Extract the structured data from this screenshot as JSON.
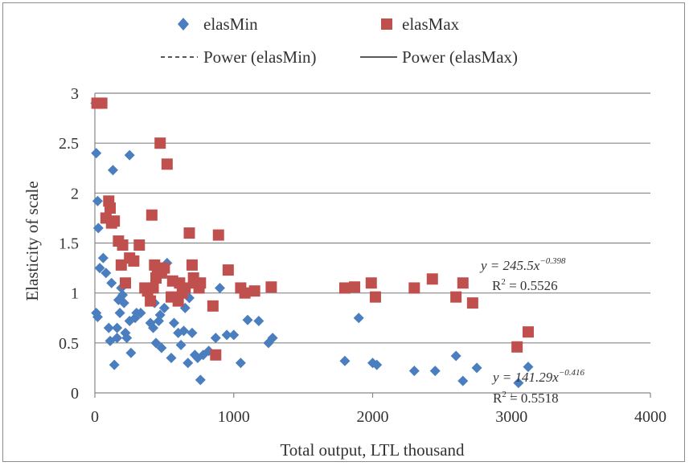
{
  "chart_data": {
    "type": "scatter",
    "xlabel": "Total output, LTL thousand",
    "ylabel": "Elasticity of scale",
    "xlim": [
      0,
      4000
    ],
    "ylim": [
      0,
      3
    ],
    "x_ticks": [
      "0",
      "1000",
      "2000",
      "3000",
      "4000"
    ],
    "y_ticks": [
      "0",
      "0.5",
      "1",
      "1.5",
      "2",
      "2.5",
      "3"
    ],
    "grid": "horizontal",
    "legend_position": "top",
    "legend": {
      "elasMin": "elasMin",
      "elasMax": "elasMax",
      "power_min": "Power (elasMin)",
      "power_max": "Power (elasMax)"
    },
    "series": [
      {
        "name": "elasMin",
        "marker": "diamond",
        "color": "#4a7ebf",
        "points": [
          [
            5,
            2.9
          ],
          [
            10,
            2.4
          ],
          [
            20,
            1.92
          ],
          [
            25,
            1.65
          ],
          [
            35,
            1.25
          ],
          [
            10,
            0.8
          ],
          [
            20,
            0.76
          ],
          [
            60,
            1.35
          ],
          [
            80,
            1.2
          ],
          [
            100,
            0.65
          ],
          [
            110,
            0.52
          ],
          [
            120,
            1.1
          ],
          [
            130,
            2.23
          ],
          [
            140,
            0.28
          ],
          [
            160,
            0.65
          ],
          [
            170,
            0.93
          ],
          [
            180,
            0.8
          ],
          [
            190,
            1.05
          ],
          [
            200,
            0.98
          ],
          [
            210,
            0.9
          ],
          [
            220,
            0.6
          ],
          [
            230,
            0.55
          ],
          [
            250,
            0.72
          ],
          [
            260,
            0.4
          ],
          [
            290,
            0.75
          ],
          [
            300,
            0.8
          ],
          [
            330,
            0.8
          ],
          [
            360,
            1.05
          ],
          [
            380,
            1.0
          ],
          [
            400,
            0.7
          ],
          [
            420,
            0.65
          ],
          [
            430,
            0.9
          ],
          [
            440,
            0.5
          ],
          [
            450,
            1.2
          ],
          [
            460,
            0.72
          ],
          [
            470,
            0.78
          ],
          [
            480,
            0.45
          ],
          [
            500,
            0.85
          ],
          [
            520,
            1.3
          ],
          [
            550,
            0.35
          ],
          [
            570,
            0.7
          ],
          [
            600,
            0.6
          ],
          [
            620,
            0.48
          ],
          [
            640,
            0.62
          ],
          [
            650,
            0.85
          ],
          [
            670,
            0.3
          ],
          [
            680,
            0.95
          ],
          [
            700,
            0.6
          ],
          [
            720,
            0.38
          ],
          [
            740,
            0.35
          ],
          [
            760,
            0.13
          ],
          [
            780,
            0.38
          ],
          [
            820,
            0.42
          ],
          [
            870,
            0.55
          ],
          [
            900,
            1.05
          ],
          [
            950,
            0.58
          ],
          [
            1000,
            0.58
          ],
          [
            1050,
            0.3
          ],
          [
            1100,
            0.73
          ],
          [
            1180,
            0.72
          ],
          [
            1250,
            0.5
          ],
          [
            1280,
            0.55
          ],
          [
            1800,
            0.32
          ],
          [
            1900,
            0.75
          ],
          [
            2000,
            0.3
          ],
          [
            2030,
            0.28
          ],
          [
            2300,
            0.22
          ],
          [
            2450,
            0.22
          ],
          [
            2600,
            0.37
          ],
          [
            2650,
            0.12
          ],
          [
            2750,
            0.25
          ],
          [
            3050,
            0.1
          ],
          [
            3120,
            0.26
          ],
          [
            250,
            2.38
          ],
          [
            160,
            0.55
          ]
        ]
      },
      {
        "name": "elasMax",
        "marker": "square",
        "color": "#c0504d",
        "points": [
          [
            15,
            2.9
          ],
          [
            50,
            2.9
          ],
          [
            80,
            1.75
          ],
          [
            100,
            1.92
          ],
          [
            110,
            1.85
          ],
          [
            120,
            1.7
          ],
          [
            140,
            1.72
          ],
          [
            170,
            1.52
          ],
          [
            190,
            1.28
          ],
          [
            200,
            1.48
          ],
          [
            220,
            1.1
          ],
          [
            250,
            1.35
          ],
          [
            280,
            1.32
          ],
          [
            320,
            1.48
          ],
          [
            360,
            1.05
          ],
          [
            380,
            1.02
          ],
          [
            400,
            0.92
          ],
          [
            410,
            1.78
          ],
          [
            420,
            1.05
          ],
          [
            430,
            1.28
          ],
          [
            440,
            1.15
          ],
          [
            450,
            1.22
          ],
          [
            470,
            2.5
          ],
          [
            480,
            1.2
          ],
          [
            500,
            1.25
          ],
          [
            520,
            2.29
          ],
          [
            550,
            0.96
          ],
          [
            560,
            1.12
          ],
          [
            600,
            0.92
          ],
          [
            610,
            1.1
          ],
          [
            630,
            1.0
          ],
          [
            650,
            1.05
          ],
          [
            680,
            1.6
          ],
          [
            700,
            1.28
          ],
          [
            710,
            1.15
          ],
          [
            720,
            1.1
          ],
          [
            750,
            1.05
          ],
          [
            760,
            1.1
          ],
          [
            850,
            0.87
          ],
          [
            870,
            0.38
          ],
          [
            890,
            1.58
          ],
          [
            960,
            1.23
          ],
          [
            1050,
            1.05
          ],
          [
            1080,
            1.0
          ],
          [
            1150,
            1.02
          ],
          [
            1270,
            1.06
          ],
          [
            1800,
            1.05
          ],
          [
            1870,
            1.06
          ],
          [
            1990,
            1.1
          ],
          [
            2020,
            0.96
          ],
          [
            2300,
            1.05
          ],
          [
            2430,
            1.14
          ],
          [
            2600,
            0.96
          ],
          [
            2650,
            1.1
          ],
          [
            2720,
            0.9
          ],
          [
            3040,
            0.46
          ],
          [
            3120,
            0.61
          ]
        ]
      }
    ],
    "trendlines": [
      {
        "name": "Power (elasMin)",
        "coef": 141.29,
        "exp": -0.416,
        "style": "dashed",
        "x_range": [
          5,
          3130
        ]
      },
      {
        "name": "Power (elasMax)",
        "coef": 245.5,
        "exp": -0.398,
        "style": "solid",
        "x_range": [
          70,
          3130
        ]
      }
    ],
    "annotations": {
      "max_eq_lead": "y = 245.5x",
      "max_eq_exp": "−0.398",
      "max_r2_lead": "R",
      "max_r2_sup": "2",
      "max_r2_tail": " = 0.5526",
      "min_eq_lead": "y = 141.29x",
      "min_eq_exp": "−0.416",
      "min_r2_lead": "R",
      "min_r2_sup": "2",
      "min_r2_tail": " = 0.5518"
    }
  }
}
